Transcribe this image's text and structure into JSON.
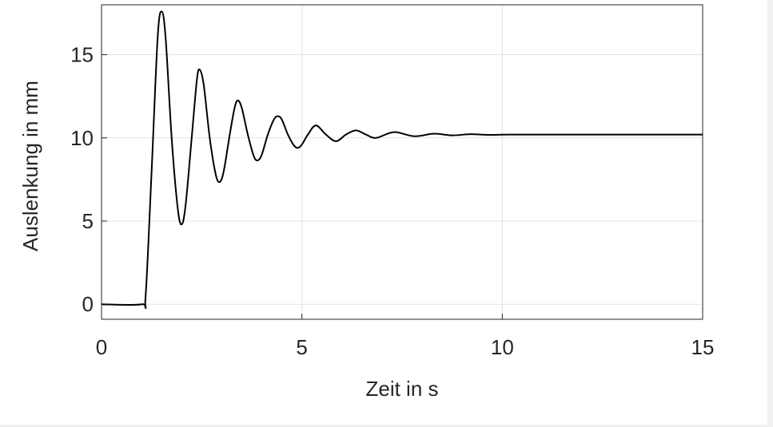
{
  "chart_data": {
    "type": "line",
    "xlabel": "Zeit in s",
    "ylabel": "Auslenkung in mm",
    "x": [
      0,
      1,
      1.1,
      1.25,
      1.4,
      1.5,
      1.6,
      1.75,
      1.9,
      2.0,
      2.1,
      2.25,
      2.38,
      2.45,
      2.55,
      2.7,
      2.85,
      2.95,
      3.05,
      3.2,
      3.32,
      3.4,
      3.5,
      3.65,
      3.8,
      3.9,
      4.0,
      4.15,
      4.3,
      4.4,
      4.5,
      4.65,
      4.8,
      4.9,
      5.0,
      5.15,
      5.35,
      5.6,
      5.85,
      6.1,
      6.35,
      6.6,
      6.85,
      7.3,
      7.8,
      8.3,
      8.75,
      9.2,
      9.7,
      10.5,
      15
    ],
    "series": [
      {
        "color": "#000000",
        "values": [
          0,
          0,
          0.5,
          8,
          16,
          17.6,
          16,
          10,
          5.8,
          4.8,
          6,
          10,
          13.5,
          14.1,
          13.2,
          10,
          7.8,
          7.35,
          8,
          10.2,
          11.8,
          12.25,
          11.8,
          10.2,
          8.9,
          8.65,
          9,
          10.2,
          11.1,
          11.3,
          11.1,
          10.2,
          9.55,
          9.4,
          9.6,
          10.2,
          10.75,
          10.2,
          9.8,
          10.2,
          10.45,
          10.2,
          10.0,
          10.35,
          10.1,
          10.25,
          10.15,
          10.22,
          10.18,
          10.2,
          10.2
        ]
      }
    ],
    "xlim": [
      0,
      15
    ],
    "ylim": [
      -0.9,
      18
    ],
    "xticks": [
      0,
      5,
      10,
      15
    ],
    "yticks": [
      0,
      5,
      10,
      15
    ],
    "grid": true
  }
}
